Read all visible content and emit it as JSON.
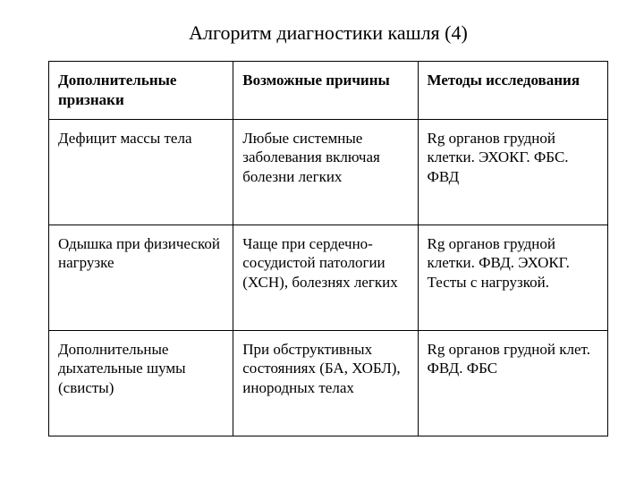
{
  "slide": {
    "title": "Алгоритм диагностики кашля  (4)",
    "title_fontsize": 22,
    "background_color": "#ffffff",
    "text_color": "#000000",
    "border_color": "#000000"
  },
  "table": {
    "type": "table",
    "column_widths_pct": [
      33,
      33,
      34
    ],
    "cell_fontsize": 17,
    "columns": [
      "Дополнительные признаки",
      "Возможные причины",
      "Методы исследования"
    ],
    "rows": [
      [
        "Дефицит массы тела",
        "Любые системные заболевания включая болезни легких",
        "Rg органов грудной клетки.  ЭХОКГ. ФБС. ФВД"
      ],
      [
        "Одышка при физической нагрузке",
        "Чаще при сердечно-сосудистой патологии (ХСН), болезнях легких",
        "Rg органов грудной клетки. ФВД.  ЭХОКГ. Тесты с нагрузкой."
      ],
      [
        "Дополнительные дыхательные шумы (свисты)",
        "При обструктивных состояниях (БА, ХОБЛ), инородных телах",
        "Rg органов грудной клет. ФВД.  ФБС"
      ]
    ]
  }
}
